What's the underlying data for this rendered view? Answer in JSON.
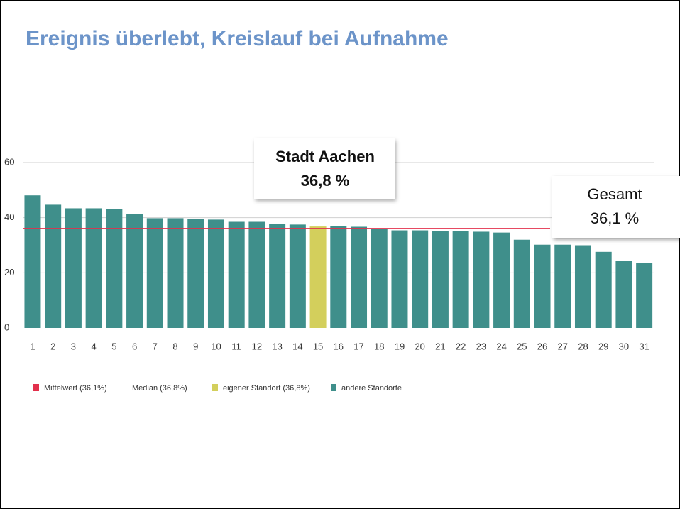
{
  "chart_data": {
    "type": "bar",
    "title": "Ereignis überlebt, Kreislauf bei Aufnahme",
    "categories": [
      "1",
      "2",
      "3",
      "4",
      "5",
      "6",
      "7",
      "8",
      "9",
      "10",
      "11",
      "12",
      "13",
      "14",
      "15",
      "16",
      "17",
      "18",
      "19",
      "20",
      "21",
      "22",
      "23",
      "24",
      "25",
      "26",
      "27",
      "28",
      "29",
      "30",
      "31"
    ],
    "values": [
      48.1,
      44.7,
      43.4,
      43.4,
      43.2,
      41.3,
      39.8,
      39.8,
      39.5,
      39.3,
      38.5,
      38.5,
      37.7,
      37.5,
      36.8,
      36.9,
      36.7,
      35.9,
      35.4,
      35.4,
      35.1,
      35.1,
      34.9,
      34.6,
      32.0,
      30.2,
      30.2,
      30.0,
      27.6,
      24.3,
      23.5
    ],
    "colors": [
      "#3f8f8b",
      "#3f8f8b",
      "#3f8f8b",
      "#3f8f8b",
      "#3f8f8b",
      "#3f8f8b",
      "#3f8f8b",
      "#3f8f8b",
      "#3f8f8b",
      "#3f8f8b",
      "#3f8f8b",
      "#3f8f8b",
      "#3f8f8b",
      "#3f8f8b",
      "#d3cf5c",
      "#3f8f8b",
      "#3f8f8b",
      "#3f8f8b",
      "#3f8f8b",
      "#3f8f8b",
      "#3f8f8b",
      "#3f8f8b",
      "#3f8f8b",
      "#3f8f8b",
      "#3f8f8b",
      "#3f8f8b",
      "#3f8f8b",
      "#3f8f8b",
      "#3f8f8b",
      "#3f8f8b",
      "#3f8f8b"
    ],
    "ylim": [
      0,
      60
    ],
    "yticks": [
      0,
      20,
      40,
      60
    ],
    "grid": true,
    "mean_line": {
      "value": 36.1,
      "color": "#e2304c"
    },
    "legend": [
      {
        "label": "Mittelwert (36,1%)",
        "color": "#e2304c"
      },
      {
        "label": "Median (36,8%)"
      },
      {
        "label": "eigener Standort (36,8%)",
        "color": "#d3cf5c"
      },
      {
        "label": "andere Standorte",
        "color": "#3f8f8b"
      }
    ],
    "annotations": [
      {
        "lines": [
          "Stadt Aachen",
          "36,8 %"
        ]
      },
      {
        "lines": [
          "Gesamt",
          "36,1 %"
        ]
      }
    ]
  }
}
